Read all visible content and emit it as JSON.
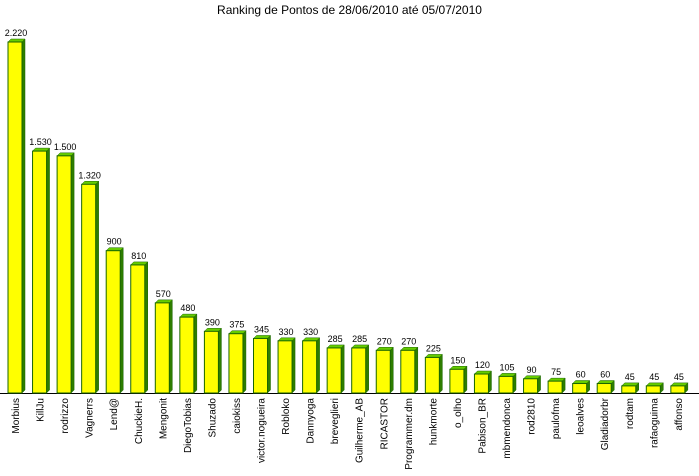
{
  "chart_data": {
    "type": "bar",
    "title": "Ranking de Pontos de 28/06/2010 até 05/07/2010",
    "categories": [
      "Morbius",
      "KillJu",
      "rodrizzo",
      "Vagnerrs",
      "Lend@",
      "ChuckieH.",
      "Mengonit",
      "DiegoTobias",
      "Shuzado",
      "caiokiss",
      "victor.nogueira",
      "Robloko",
      "Dannyoga",
      "breveglieri",
      "Guilherme_AB",
      "RICASTOR",
      "Programmer.dm",
      "hunkmorte",
      "o_olho",
      "Pabison_BR",
      "mbmendonca",
      "rod2810",
      "paulofma",
      "leoalves",
      "Gladiadorbr",
      "rodtam",
      "rafaoguima",
      "affonso"
    ],
    "values": [
      2220,
      1530,
      1500,
      1320,
      900,
      810,
      570,
      480,
      390,
      375,
      345,
      330,
      330,
      285,
      285,
      270,
      270,
      225,
      150,
      120,
      105,
      90,
      75,
      60,
      60,
      45,
      45,
      45
    ],
    "value_labels": [
      "2.220",
      "1.530",
      "1.500",
      "1.320",
      "900",
      "810",
      "570",
      "480",
      "390",
      "375",
      "345",
      "330",
      "330",
      "285",
      "285",
      "270",
      "270",
      "225",
      "150",
      "120",
      "105",
      "90",
      "75",
      "60",
      "60",
      "45",
      "45",
      "45"
    ],
    "ylim": [
      0,
      2220
    ],
    "grid": false,
    "legend": "none",
    "colors": {
      "bar_face": "#ffff00",
      "bar_side": "#2e7d00",
      "bar_top": "#66cc00",
      "bar_edge": "#1a6600",
      "axis": "#000000"
    }
  }
}
